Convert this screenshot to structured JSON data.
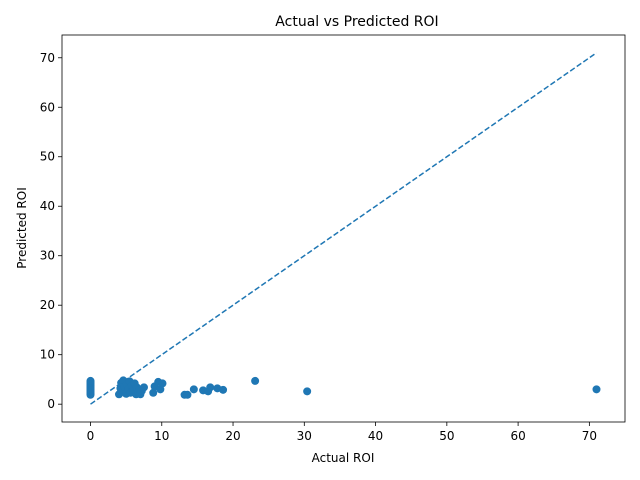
{
  "chart_data": {
    "type": "scatter",
    "title": "Actual vs Predicted ROI",
    "xlabel": "Actual ROI",
    "ylabel": "Predicted ROI",
    "xlim": [
      -4.0,
      75.0
    ],
    "ylim": [
      -3.6,
      74.6
    ],
    "xticks": [
      0,
      10,
      20,
      30,
      40,
      50,
      60,
      70
    ],
    "yticks": [
      0,
      10,
      20,
      30,
      40,
      50,
      60,
      70
    ],
    "grid": false,
    "marker_color": "#1f77b4",
    "reference_line": {
      "style": "dashed",
      "color": "#1f77b4",
      "x": [
        0,
        71
      ],
      "y": [
        0,
        71
      ]
    },
    "series": [
      {
        "points": [
          [
            0,
            1.9
          ],
          [
            0,
            2.1
          ],
          [
            0,
            2.3
          ],
          [
            0,
            2.5
          ],
          [
            0,
            2.7
          ],
          [
            0,
            2.9
          ],
          [
            0,
            3.1
          ],
          [
            0,
            3.3
          ],
          [
            0,
            3.5
          ],
          [
            0,
            3.7
          ],
          [
            0,
            3.9
          ],
          [
            0,
            4.1
          ],
          [
            0,
            4.3
          ],
          [
            0,
            4.5
          ],
          [
            0,
            4.7
          ],
          [
            4.0,
            2.0
          ],
          [
            4.2,
            3.2
          ],
          [
            4.3,
            4.3
          ],
          [
            4.5,
            2.6
          ],
          [
            4.6,
            4.8
          ],
          [
            4.8,
            3.5
          ],
          [
            5.0,
            2.1
          ],
          [
            5.1,
            4.0
          ],
          [
            5.3,
            3.0
          ],
          [
            5.5,
            4.6
          ],
          [
            5.6,
            2.3
          ],
          [
            5.8,
            3.8
          ],
          [
            6.0,
            2.8
          ],
          [
            6.2,
            4.2
          ],
          [
            6.4,
            2.0
          ],
          [
            6.5,
            3.4
          ],
          [
            6.7,
            2.5
          ],
          [
            6.9,
            3.0
          ],
          [
            7.0,
            2.0
          ],
          [
            7.2,
            2.7
          ],
          [
            7.5,
            3.4
          ],
          [
            8.8,
            2.3
          ],
          [
            9.0,
            3.6
          ],
          [
            9.5,
            4.5
          ],
          [
            9.8,
            3.0
          ],
          [
            10.1,
            4.2
          ],
          [
            13.2,
            1.9
          ],
          [
            13.6,
            1.9
          ],
          [
            14.5,
            3.0
          ],
          [
            15.8,
            2.8
          ],
          [
            16.5,
            2.6
          ],
          [
            16.8,
            3.4
          ],
          [
            17.8,
            3.2
          ],
          [
            18.6,
            2.9
          ],
          [
            23.1,
            4.7
          ],
          [
            30.4,
            2.6
          ],
          [
            71.0,
            3.0
          ]
        ]
      }
    ]
  }
}
